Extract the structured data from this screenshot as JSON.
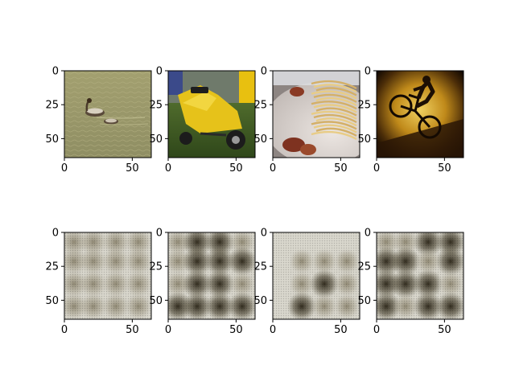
{
  "chart_data": [
    {
      "type": "image",
      "image": "duck-swimming-on-water",
      "x_ticks": [
        "0",
        "50"
      ],
      "y_ticks": [
        "0",
        "25",
        "50"
      ],
      "xlim": [
        0,
        64
      ],
      "ylim": [
        64,
        0
      ]
    },
    {
      "type": "image",
      "image": "yellow-scooter-on-grass",
      "x_ticks": [
        "0",
        "50"
      ],
      "y_ticks": [
        "0",
        "25",
        "50"
      ],
      "xlim": [
        0,
        64
      ],
      "ylim": [
        64,
        0
      ]
    },
    {
      "type": "image",
      "image": "spaghetti-with-sausage",
      "x_ticks": [
        "0",
        "50"
      ],
      "y_ticks": [
        "0",
        "25",
        "50"
      ],
      "xlim": [
        0,
        64
      ],
      "ylim": [
        64,
        0
      ]
    },
    {
      "type": "image",
      "image": "mountain-biker-jumping",
      "x_ticks": [
        "0",
        "50"
      ],
      "y_ticks": [
        "0",
        "25",
        "50"
      ],
      "xlim": [
        0,
        64
      ],
      "ylim": [
        64,
        0
      ]
    },
    {
      "type": "image",
      "image": "blurry-checkerboard-reconstruction-1",
      "x_ticks": [
        "0",
        "50"
      ],
      "y_ticks": [
        "0",
        "25",
        "50"
      ],
      "xlim": [
        0,
        64
      ],
      "ylim": [
        64,
        0
      ]
    },
    {
      "type": "image",
      "image": "blurry-checkerboard-reconstruction-2",
      "x_ticks": [
        "0",
        "50"
      ],
      "y_ticks": [
        "0",
        "25",
        "50"
      ],
      "xlim": [
        0,
        64
      ],
      "ylim": [
        64,
        0
      ]
    },
    {
      "type": "image",
      "image": "blurry-checkerboard-reconstruction-3",
      "x_ticks": [
        "0",
        "50"
      ],
      "y_ticks": [
        "0",
        "25",
        "50"
      ],
      "xlim": [
        0,
        64
      ],
      "ylim": [
        64,
        0
      ]
    },
    {
      "type": "image",
      "image": "blurry-checkerboard-reconstruction-4",
      "x_ticks": [
        "0",
        "50"
      ],
      "y_ticks": [
        "0",
        "25",
        "50"
      ],
      "xlim": [
        0,
        64
      ],
      "ylim": [
        64,
        0
      ]
    }
  ],
  "colors": {
    "water": "#9b9a6a",
    "scooter_yellow": "#e8c418",
    "grass": "#3e5a22",
    "pasta": "#e2c27a",
    "plate": "#d9d3cf",
    "sausage": "#8a3a24",
    "biker_glow": "#c9951c",
    "vignette": "#1a1005",
    "recon_light": "#d9d6cc",
    "recon_dark": "#2a2416"
  }
}
